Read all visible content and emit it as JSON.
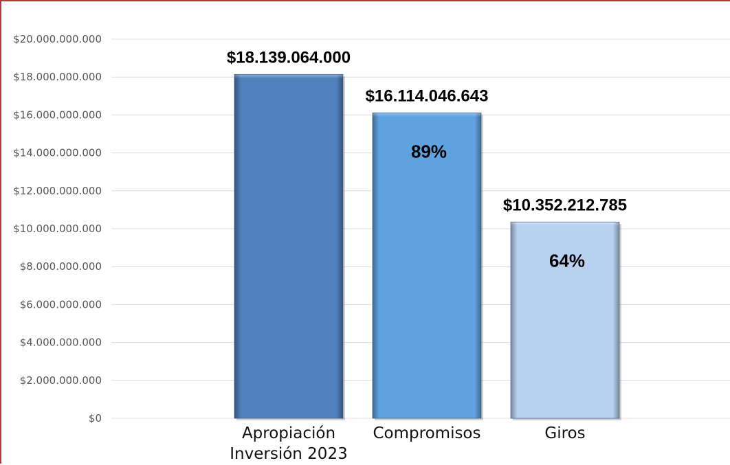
{
  "chart_data": {
    "type": "bar",
    "title": "",
    "xlabel": "",
    "ylabel": "",
    "ylim": [
      0,
      20000000000
    ],
    "grid": true,
    "legend": "none",
    "y_ticks": [
      {
        "value": 0,
        "label": "$0"
      },
      {
        "value": 2000000000,
        "label": "$2.000.000.000"
      },
      {
        "value": 4000000000,
        "label": "$4.000.000.000"
      },
      {
        "value": 6000000000,
        "label": "$6.000.000.000"
      },
      {
        "value": 8000000000,
        "label": "$8.000.000.000"
      },
      {
        "value": 10000000000,
        "label": "$10.000.000.000"
      },
      {
        "value": 12000000000,
        "label": "$12.000.000.000"
      },
      {
        "value": 14000000000,
        "label": "$14.000.000.000"
      },
      {
        "value": 16000000000,
        "label": "$16.000.000.000"
      },
      {
        "value": 18000000000,
        "label": "$18.000.000.000"
      },
      {
        "value": 20000000000,
        "label": "$20.000.000.000"
      }
    ],
    "categories": [
      [
        "Apropiación",
        "Inversión 2023"
      ],
      [
        "Compromisos"
      ],
      [
        "Giros"
      ]
    ],
    "values": [
      18139064000,
      16114046643,
      10352212785
    ],
    "value_labels": [
      "$18.139.064.000",
      "$16.114.046.643",
      "$10.352.212.785"
    ],
    "percent_labels": [
      "",
      "89%",
      "64%"
    ],
    "colors": [
      "#4f81bd",
      "#5fa2e0",
      "#b8d1f0"
    ],
    "grid_color": "#dcdcdc",
    "frame_color": "#b03a3a"
  }
}
